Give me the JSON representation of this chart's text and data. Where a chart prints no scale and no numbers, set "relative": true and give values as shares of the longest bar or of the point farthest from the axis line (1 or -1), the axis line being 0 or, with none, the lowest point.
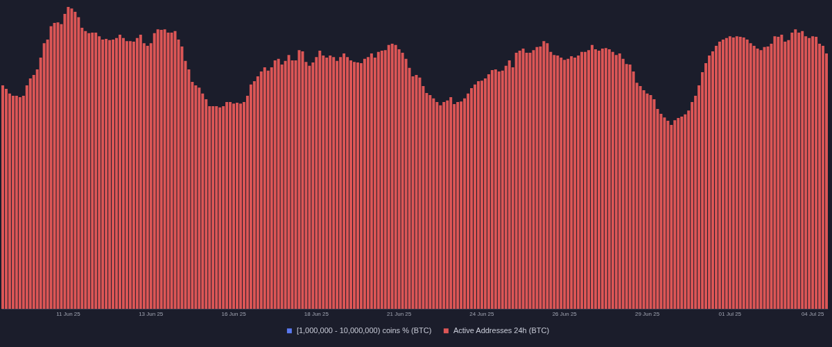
{
  "chart_data": {
    "type": "bar",
    "relative": true,
    "legend": "bottom",
    "categories": [
      null,
      null,
      null,
      null,
      null,
      null,
      null,
      null,
      null,
      null,
      null,
      null,
      null,
      null,
      null,
      null,
      null,
      null,
      null,
      "11 Jun 25",
      null,
      null,
      null,
      null,
      null,
      null,
      null,
      null,
      null,
      null,
      null,
      null,
      null,
      null,
      null,
      null,
      null,
      null,
      null,
      null,
      null,
      null,
      null,
      "13 Jun 25",
      null,
      null,
      null,
      null,
      null,
      null,
      null,
      null,
      null,
      null,
      null,
      null,
      null,
      null,
      null,
      null,
      null,
      null,
      null,
      null,
      null,
      null,
      null,
      "16 Jun 25",
      null,
      null,
      null,
      null,
      null,
      null,
      null,
      null,
      null,
      null,
      null,
      null,
      null,
      null,
      null,
      null,
      null,
      null,
      null,
      null,
      null,
      null,
      null,
      "18 Jun 25",
      null,
      null,
      null,
      null,
      null,
      null,
      null,
      null,
      null,
      null,
      null,
      null,
      null,
      null,
      null,
      null,
      null,
      null,
      null,
      null,
      null,
      null,
      null,
      "21 Jun 25",
      null,
      null,
      null,
      null,
      null,
      null,
      null,
      null,
      null,
      null,
      null,
      null,
      null,
      null,
      null,
      null,
      null,
      null,
      null,
      null,
      null,
      null,
      null,
      "24 Jun 25",
      null,
      null,
      null,
      null,
      null,
      null,
      null,
      null,
      null,
      null,
      null,
      null,
      null,
      null,
      null,
      null,
      null,
      null,
      null,
      null,
      null,
      null,
      null,
      "26 Jun 25",
      null,
      null,
      null,
      null,
      null,
      null,
      null,
      null,
      null,
      null,
      null,
      null,
      null,
      null,
      null,
      null,
      null,
      null,
      null,
      null,
      null,
      null,
      null,
      "29 Jun 25",
      null,
      null,
      null,
      null,
      null,
      null,
      null,
      null,
      null,
      null,
      null,
      null,
      null,
      null,
      null,
      null,
      null,
      null,
      null,
      null,
      null,
      null,
      null,
      "01 Jul 25",
      null,
      null,
      null,
      null,
      null,
      null,
      null,
      null,
      null,
      null,
      null,
      null,
      null,
      null,
      null,
      null,
      null,
      null,
      null,
      null,
      null,
      null,
      null,
      "04 Jul 25",
      null,
      null,
      null,
      null
    ],
    "series": [
      {
        "name": "[1,000,000 - 10,000,000) coins % (BTC)",
        "color": "#5a78f0",
        "values": [
          null,
          null,
          null,
          null,
          null,
          null,
          null,
          null,
          null,
          null,
          null,
          null,
          null,
          null,
          null,
          null,
          null,
          null,
          null,
          null,
          null,
          null,
          null,
          null,
          null,
          null,
          null,
          null,
          null,
          null,
          null,
          null,
          null,
          null,
          null,
          null,
          null,
          null,
          null,
          null,
          null,
          null,
          null,
          null,
          null,
          null,
          null,
          null,
          null,
          null,
          null,
          null,
          null,
          null,
          null,
          null,
          null,
          null,
          null,
          null,
          null,
          null,
          null,
          null,
          null,
          null,
          null,
          null,
          null,
          null,
          null,
          null,
          null,
          null,
          null,
          null,
          null,
          null,
          null,
          null,
          null,
          null,
          null,
          null,
          null,
          null,
          null,
          null,
          null,
          null,
          null,
          null,
          null,
          null,
          null,
          null,
          null,
          null,
          null,
          null,
          null,
          null,
          null,
          null,
          null,
          null,
          null,
          null,
          null,
          null,
          null,
          null,
          null,
          null,
          null,
          null,
          null,
          null,
          null,
          null,
          null,
          null,
          null,
          null,
          null,
          null,
          null,
          null,
          null,
          null,
          null,
          null,
          null,
          null,
          null,
          null,
          null,
          null,
          null,
          null,
          null,
          null,
          null,
          null,
          null,
          null,
          null,
          null,
          null,
          null,
          null,
          null,
          null,
          null,
          null,
          null,
          null,
          null,
          null,
          null,
          null,
          null,
          null,
          null,
          null,
          null,
          null,
          null,
          null,
          null,
          null,
          null,
          null,
          null,
          null,
          null,
          null,
          null,
          null,
          null,
          null,
          null,
          null,
          null,
          null,
          null,
          null,
          null,
          null,
          null,
          null,
          null,
          null,
          null,
          null,
          null,
          null,
          null,
          null,
          null,
          null,
          null,
          null,
          null,
          null,
          null,
          null,
          null,
          null,
          null,
          null,
          null,
          null,
          null,
          null,
          null,
          null,
          null,
          null,
          null,
          null,
          null,
          null,
          null,
          null,
          null,
          null,
          null,
          null,
          null,
          null,
          null,
          null,
          null,
          null,
          null,
          null,
          null,
          null,
          null
        ]
      },
      {
        "name": "Active Addresses 24h (BTC)",
        "color": "#dc5656",
        "values": [
          0.74,
          0.729,
          0.713,
          0.706,
          0.706,
          0.701,
          0.706,
          0.74,
          0.763,
          0.775,
          0.793,
          0.832,
          0.88,
          0.892,
          0.936,
          0.947,
          0.949,
          0.943,
          0.977,
          1,
          0.995,
          0.984,
          0.966,
          0.931,
          0.92,
          0.913,
          0.915,
          0.915,
          0.903,
          0.892,
          0.894,
          0.89,
          0.892,
          0.897,
          0.908,
          0.897,
          0.887,
          0.887,
          0.885,
          0.897,
          0.908,
          0.88,
          0.871,
          0.88,
          0.913,
          0.926,
          0.924,
          0.926,
          0.915,
          0.915,
          0.92,
          0.892,
          0.869,
          0.821,
          0.793,
          0.752,
          0.74,
          0.733,
          0.713,
          0.694,
          0.671,
          0.671,
          0.671,
          0.667,
          0.671,
          0.685,
          0.685,
          0.68,
          0.683,
          0.68,
          0.685,
          0.706,
          0.743,
          0.754,
          0.77,
          0.786,
          0.8,
          0.789,
          0.8,
          0.823,
          0.828,
          0.809,
          0.821,
          0.841,
          0.823,
          0.823,
          0.857,
          0.853,
          0.818,
          0.805,
          0.816,
          0.834,
          0.855,
          0.839,
          0.832,
          0.839,
          0.834,
          0.821,
          0.834,
          0.846,
          0.834,
          0.823,
          0.818,
          0.816,
          0.814,
          0.828,
          0.834,
          0.846,
          0.832,
          0.851,
          0.855,
          0.857,
          0.874,
          0.878,
          0.874,
          0.86,
          0.848,
          0.828,
          0.798,
          0.77,
          0.775,
          0.766,
          0.738,
          0.715,
          0.708,
          0.697,
          0.685,
          0.674,
          0.685,
          0.69,
          0.701,
          0.678,
          0.685,
          0.687,
          0.697,
          0.713,
          0.731,
          0.743,
          0.754,
          0.756,
          0.763,
          0.777,
          0.791,
          0.793,
          0.786,
          0.789,
          0.805,
          0.823,
          0.8,
          0.848,
          0.855,
          0.862,
          0.848,
          0.848,
          0.857,
          0.867,
          0.869,
          0.887,
          0.88,
          0.851,
          0.841,
          0.839,
          0.832,
          0.825,
          0.828,
          0.837,
          0.832,
          0.839,
          0.851,
          0.851,
          0.857,
          0.874,
          0.86,
          0.855,
          0.862,
          0.864,
          0.86,
          0.851,
          0.841,
          0.846,
          0.828,
          0.811,
          0.809,
          0.786,
          0.749,
          0.738,
          0.724,
          0.713,
          0.708,
          0.694,
          0.662,
          0.646,
          0.634,
          0.623,
          0.609,
          0.625,
          0.632,
          0.637,
          0.644,
          0.657,
          0.685,
          0.706,
          0.74,
          0.784,
          0.814,
          0.839,
          0.853,
          0.871,
          0.885,
          0.892,
          0.897,
          0.903,
          0.899,
          0.903,
          0.901,
          0.899,
          0.892,
          0.88,
          0.871,
          0.862,
          0.857,
          0.867,
          0.869,
          0.878,
          0.903,
          0.901,
          0.908,
          0.885,
          0.89,
          0.915,
          0.926,
          0.915,
          0.92,
          0.903,
          0.897,
          0.903,
          0.901,
          0.878,
          0.871,
          0.846
        ]
      }
    ]
  }
}
